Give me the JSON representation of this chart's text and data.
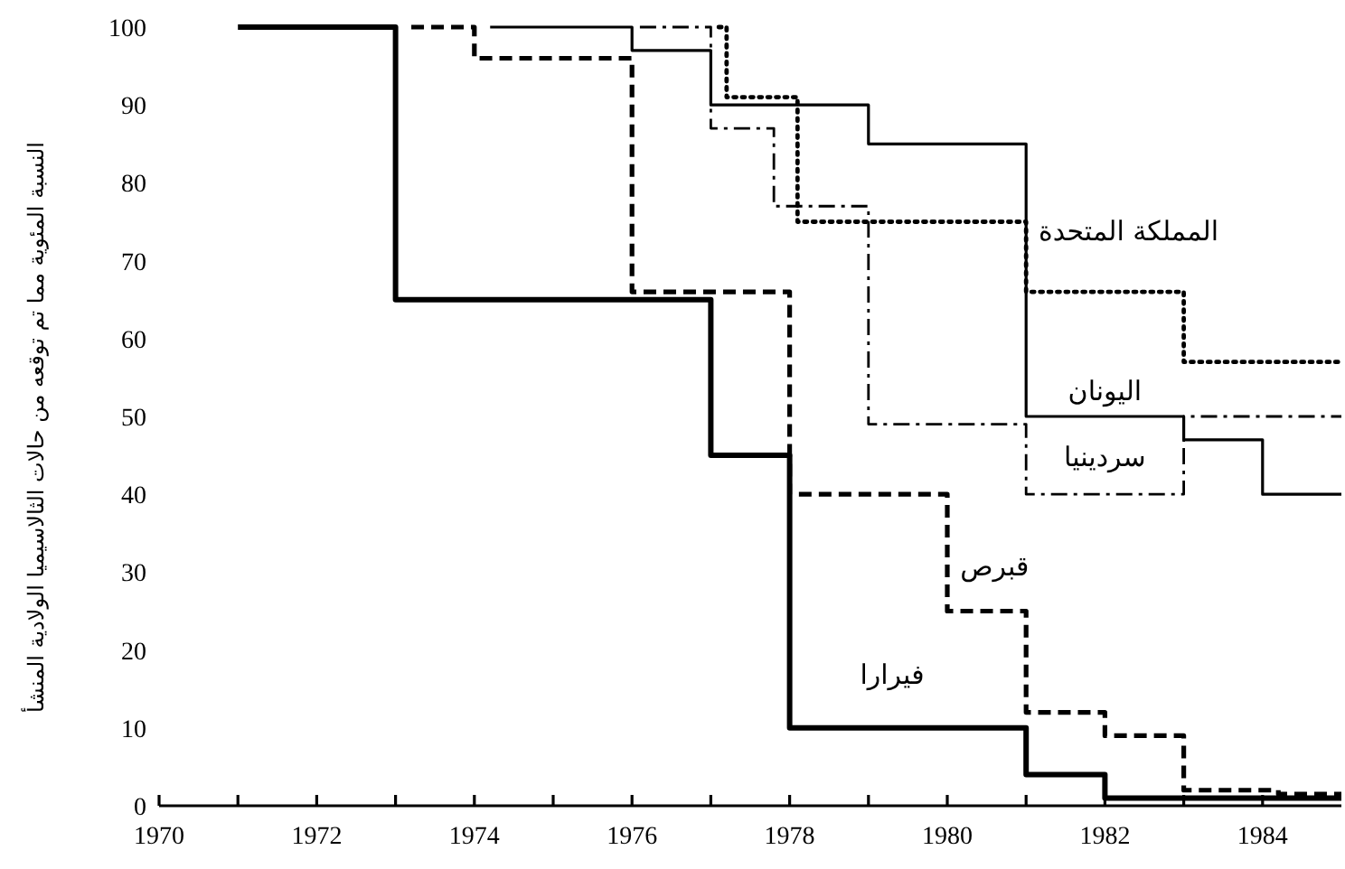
{
  "chart_data": {
    "type": "step",
    "ylabel": "النسبة المئوية مما تم توقعه من حالات الثالاسيميا الولادية المنشأ",
    "xlim": [
      1970,
      1985
    ],
    "xticks": [
      1970,
      {
        "value": 1971,
        "label": null
      },
      1972,
      {
        "value": 1973,
        "label": null
      },
      1974,
      {
        "value": 1975,
        "label": null
      },
      1976,
      {
        "value": 1977,
        "label": null
      },
      1978,
      {
        "value": 1979,
        "label": null
      },
      1980,
      {
        "value": 1981,
        "label": null
      },
      1982,
      {
        "value": 1983,
        "label": null
      },
      1984
    ],
    "ylim": [
      0,
      100
    ],
    "yticks": [
      0,
      10,
      20,
      30,
      40,
      50,
      60,
      70,
      80,
      90,
      100
    ],
    "series": [
      {
        "name": "فيرارا",
        "color": "#000000",
        "line_style": "solid",
        "x": [
          1971,
          1973,
          1977,
          1978,
          1981,
          1982,
          1985
        ],
        "values": [
          100,
          65,
          45,
          10,
          4,
          1,
          1
        ]
      },
      {
        "name": "قبرص",
        "color": "#000000",
        "line_style": "dashed",
        "x": [
          1973.2,
          1974,
          1976,
          1978,
          1980,
          1981,
          1982,
          1983,
          1984.2,
          1985
        ],
        "values": [
          100,
          96,
          66,
          40,
          25,
          12,
          9,
          2,
          1.5,
          1.5
        ]
      },
      {
        "name": "اليونان",
        "color": "#000000",
        "line_style": "solid",
        "x": [
          1974.2,
          1976,
          1977,
          1979,
          1981,
          1983,
          1984,
          1985
        ],
        "values": [
          100,
          97,
          90,
          85,
          50,
          47,
          40,
          40
        ]
      },
      {
        "name": "المملكة المتحدة",
        "color": "#000000",
        "line_style": "dotted",
        "x": [
          1977.1,
          1977.2,
          1978.1,
          1981,
          1983,
          1985
        ],
        "values": [
          100,
          91,
          75,
          66,
          57,
          57
        ]
      },
      {
        "name": "سردينيا",
        "color": "#000000",
        "line_style": "dashdot",
        "x": [
          1976.1,
          1977,
          1977.8,
          1979,
          1981,
          1983,
          1985
        ],
        "values": [
          100,
          87,
          77,
          49,
          40,
          50,
          50
        ]
      }
    ]
  }
}
